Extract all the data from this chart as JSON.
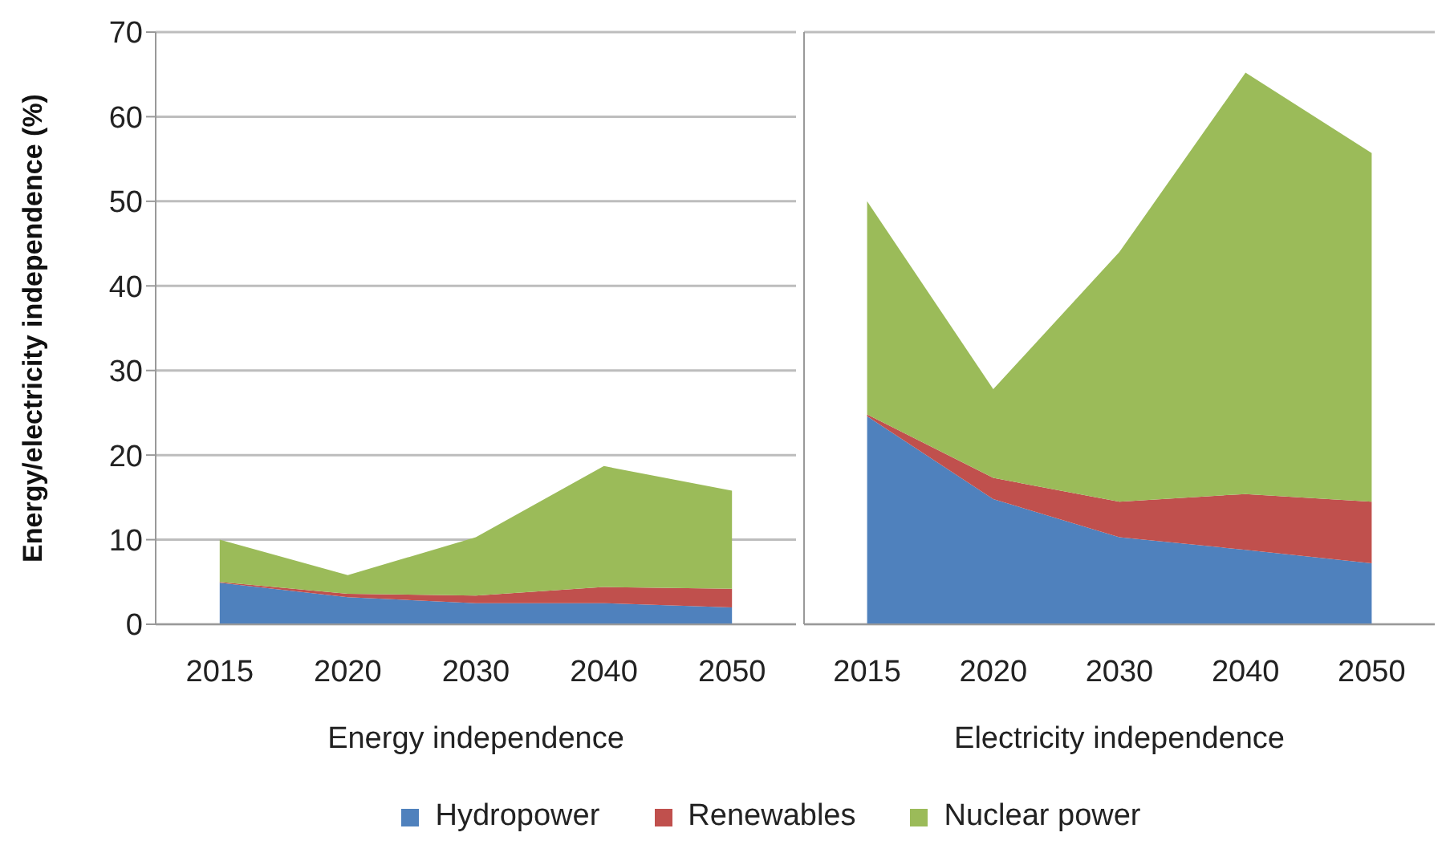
{
  "chart_data": [
    {
      "type": "area",
      "stacked": true,
      "xlabel": "Energy independence",
      "ylabel": "Energy/electricity independence (%)",
      "categories": [
        "2015",
        "2020",
        "2030",
        "2040",
        "2050"
      ],
      "ylim": [
        0,
        70
      ],
      "yticks": [
        0,
        10,
        20,
        30,
        40,
        50,
        60,
        70
      ],
      "grid": "y",
      "legend": "bottom",
      "series": [
        {
          "name": "Hydropower",
          "color": "#4f81bd",
          "values": [
            4.9,
            3.2,
            2.5,
            2.5,
            2.0
          ]
        },
        {
          "name": "Renewables",
          "color": "#c0504d",
          "values": [
            0.1,
            0.4,
            0.9,
            1.9,
            2.2
          ]
        },
        {
          "name": "Nuclear power",
          "color": "#9bbb59",
          "values": [
            5.0,
            2.2,
            6.9,
            14.3,
            11.6
          ]
        }
      ]
    },
    {
      "type": "area",
      "stacked": true,
      "xlabel": "Electricity independence",
      "categories": [
        "2015",
        "2020",
        "2030",
        "2040",
        "2050"
      ],
      "ylim": [
        0,
        70
      ],
      "yticks": [
        0,
        10,
        20,
        30,
        40,
        50,
        60,
        70
      ],
      "grid": "y",
      "tick_labels": "x",
      "series": [
        {
          "color": "#4f81bd",
          "values": [
            24.6,
            14.8,
            10.3,
            8.8,
            7.2
          ]
        },
        {
          "color": "#c0504d",
          "values": [
            0.2,
            2.5,
            4.2,
            6.6,
            7.3
          ]
        },
        {
          "color": "#9bbb59",
          "values": [
            25.2,
            10.5,
            29.5,
            49.8,
            41.2
          ]
        }
      ]
    }
  ]
}
